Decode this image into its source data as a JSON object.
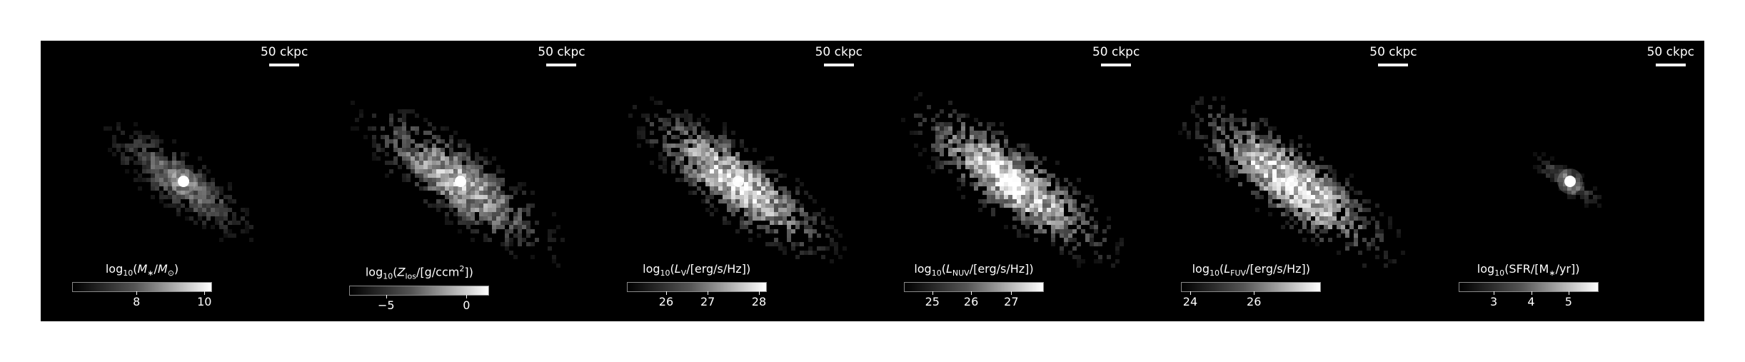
{
  "panels": [
    {
      "scale_label": "50 ckpc",
      "cbar_label_html": "log<sub>10</sub>(<i>M</i><sub>∗</sub>/<i>M</i><sub>⊙</sub>)",
      "ticks": [
        "8",
        "10"
      ],
      "brightness": 0.45,
      "core": 1.0,
      "spread": 1.0
    },
    {
      "scale_label": "50 ckpc",
      "cbar_label_html": "log<sub>10</sub>(<i>Z</i><sub>los</sub>/[g/ccm<sup>2</sup>])",
      "ticks": [
        "−5",
        "0"
      ],
      "brightness": 0.7,
      "core": 1.0,
      "spread": 1.25
    },
    {
      "scale_label": "50 ckpc",
      "cbar_label_html": "log<sub>10</sub>(<i>L</i><sub>V</sub>/[erg/s/Hz])",
      "ticks": [
        "26",
        "27",
        "28"
      ],
      "brightness": 0.85,
      "core": 0.9,
      "spread": 1.25
    },
    {
      "scale_label": "50 ckpc",
      "cbar_label_html": "log<sub>10</sub>(<i>L</i><sub>NUV</sub>/[erg/s/Hz])",
      "ticks": [
        "25",
        "26",
        "27"
      ],
      "brightness": 0.9,
      "core": 0.85,
      "spread": 1.3
    },
    {
      "scale_label": "50 ckpc",
      "cbar_label_html": "log<sub>10</sub>(<i>L</i><sub>FUV</sub>/[erg/s/Hz])",
      "ticks": [
        "24",
        "26"
      ],
      "brightness": 0.92,
      "core": 0.85,
      "spread": 1.3
    },
    {
      "scale_label": "50 ckpc",
      "cbar_label_html": "log<sub>10</sub>(SFR/[M<sub>∗</sub>/yr])",
      "ticks": [
        "3",
        "4",
        "5"
      ],
      "brightness": 0.4,
      "core": 1.0,
      "spread": 0.45
    }
  ]
}
